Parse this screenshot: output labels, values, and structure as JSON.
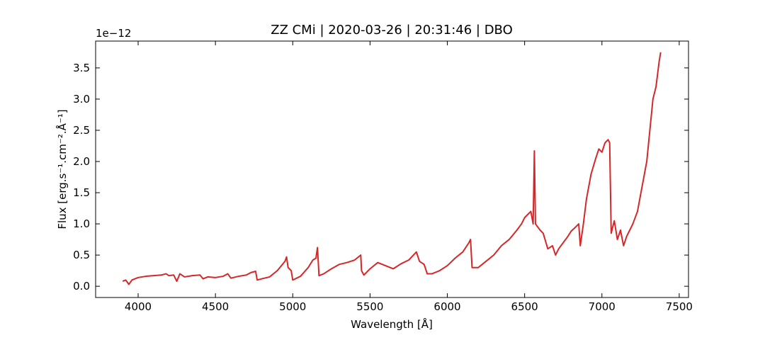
{
  "chart_data": {
    "type": "line",
    "title": "ZZ CMi | 2020-03-26 | 20:31:46 | DBO",
    "x_label": "Wavelength [Å]",
    "y_label": "Flux [erg.s⁻¹.cm⁻².Å⁻¹]",
    "y_offset_label": "1e−12",
    "xlim": [
      3725,
      7560
    ],
    "ylim": [
      -0.18,
      3.93
    ],
    "xticks": [
      4000,
      4500,
      5000,
      5500,
      6000,
      6500,
      7000,
      7500
    ],
    "yticks": [
      {
        "value": 0,
        "label": "0.0"
      },
      {
        "value": 0.5,
        "label": "0.5"
      },
      {
        "value": 1,
        "label": "1.0"
      },
      {
        "value": 1.5,
        "label": "1.5"
      },
      {
        "value": 2,
        "label": "2.0"
      },
      {
        "value": 2.5,
        "label": "2.5"
      },
      {
        "value": 3,
        "label": "3.0"
      },
      {
        "value": 3.5,
        "label": "3.5"
      }
    ],
    "x": [
      3900,
      3920,
      3940,
      3960,
      3980,
      4000,
      4050,
      4100,
      4150,
      4180,
      4200,
      4230,
      4250,
      4270,
      4300,
      4350,
      4400,
      4420,
      4450,
      4500,
      4550,
      4580,
      4600,
      4650,
      4700,
      4730,
      4760,
      4770,
      4800,
      4850,
      4900,
      4950,
      4960,
      4970,
      4990,
      5000,
      5050,
      5100,
      5130,
      5150,
      5160,
      5170,
      5200,
      5250,
      5300,
      5350,
      5400,
      5440,
      5445,
      5460,
      5500,
      5550,
      5600,
      5650,
      5700,
      5750,
      5800,
      5820,
      5850,
      5870,
      5900,
      5950,
      6000,
      6050,
      6100,
      6140,
      6150,
      6160,
      6200,
      6250,
      6300,
      6350,
      6400,
      6450,
      6480,
      6500,
      6540,
      6555,
      6563,
      6570,
      6600,
      6620,
      6650,
      6680,
      6700,
      6720,
      6750,
      6780,
      6800,
      6830,
      6850,
      6860,
      6880,
      6900,
      6930,
      6960,
      6980,
      7000,
      7020,
      7040,
      7050,
      7060,
      7080,
      7100,
      7120,
      7140,
      7160,
      7200,
      7230,
      7260,
      7290,
      7310,
      7330,
      7350,
      7370,
      7380
    ],
    "series": [
      {
        "name": "ZZ CMi",
        "color": "#d62728",
        "values": [
          0.08,
          0.1,
          0.03,
          0.1,
          0.12,
          0.14,
          0.16,
          0.17,
          0.18,
          0.2,
          0.17,
          0.18,
          0.08,
          0.2,
          0.15,
          0.17,
          0.18,
          0.12,
          0.15,
          0.14,
          0.16,
          0.2,
          0.13,
          0.16,
          0.18,
          0.22,
          0.24,
          0.1,
          0.12,
          0.15,
          0.25,
          0.4,
          0.47,
          0.3,
          0.25,
          0.1,
          0.16,
          0.3,
          0.42,
          0.45,
          0.62,
          0.17,
          0.2,
          0.28,
          0.35,
          0.38,
          0.42,
          0.5,
          0.25,
          0.18,
          0.28,
          0.38,
          0.33,
          0.28,
          0.36,
          0.42,
          0.55,
          0.4,
          0.35,
          0.2,
          0.2,
          0.25,
          0.33,
          0.45,
          0.55,
          0.7,
          0.75,
          0.3,
          0.3,
          0.4,
          0.5,
          0.65,
          0.75,
          0.9,
          1.0,
          1.1,
          1.2,
          1.0,
          2.17,
          1.0,
          0.9,
          0.85,
          0.6,
          0.65,
          0.5,
          0.6,
          0.7,
          0.8,
          0.88,
          0.95,
          1.0,
          0.65,
          1.0,
          1.4,
          1.8,
          2.05,
          2.2,
          2.15,
          2.3,
          2.35,
          2.3,
          0.85,
          1.05,
          0.75,
          0.9,
          0.65,
          0.8,
          1.0,
          1.2,
          1.6,
          2.0,
          2.5,
          3.0,
          3.2,
          3.6,
          3.75
        ]
      }
    ]
  }
}
